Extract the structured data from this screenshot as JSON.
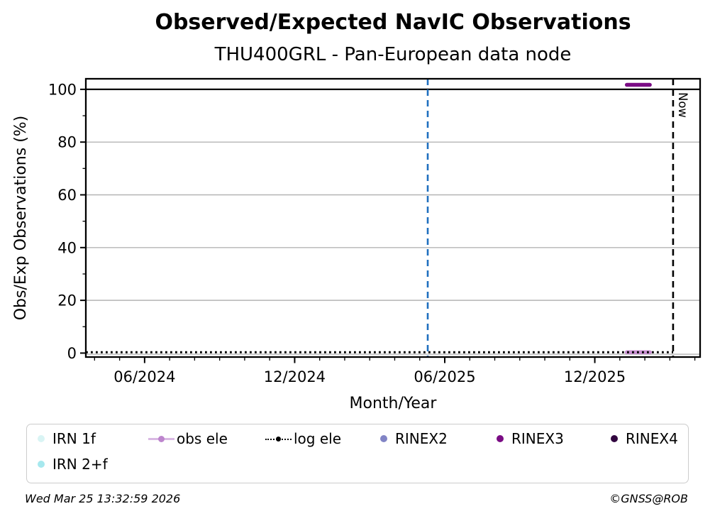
{
  "header": {
    "title": "Observed/Expected NavIC Observations",
    "subtitle": "THU400GRL - Pan-European data node"
  },
  "footer": {
    "timestamp": "Wed Mar 25 13:32:59 2026",
    "copyright": "©GNSS@ROB"
  },
  "chart_data": {
    "type": "line",
    "title": "Observed/Expected NavIC Observations",
    "subtitle": "THU400GRL - Pan-European data node",
    "xlabel": "Month/Year",
    "ylabel": "Obs/Exp Observations (%)",
    "x_unit": "months_since_2024-01-01",
    "xlim": [
      2.65,
      27.21
    ],
    "ylim": [
      -1.5,
      104
    ],
    "x_major_ticks": [
      {
        "m": 5,
        "label": "06/2024"
      },
      {
        "m": 11,
        "label": "12/2024"
      },
      {
        "m": 17,
        "label": "06/2025"
      },
      {
        "m": 23,
        "label": "12/2025"
      }
    ],
    "x_minor_step": 1,
    "y_major_ticks": [
      0,
      20,
      40,
      60,
      80,
      100
    ],
    "y_minor_ticks": [
      10,
      30,
      50,
      70,
      90
    ],
    "grid": {
      "y_values": [
        0,
        20,
        40,
        60,
        80
      ],
      "color": "#b4b4b4"
    },
    "reference_lines": [
      {
        "name": "hundred-percent-line",
        "orientation": "horizontal",
        "y": 100,
        "color": "#000000",
        "style": "solid",
        "width": 2.2,
        "label": ""
      },
      {
        "name": "event-line",
        "orientation": "vertical",
        "x": 16.32,
        "color": "#1f6fbf",
        "style": "dashed",
        "width": 2.6,
        "label": ""
      },
      {
        "name": "now-line",
        "orientation": "vertical",
        "x": 26.13,
        "color": "#000000",
        "style": "dashed",
        "width": 2.6,
        "label": "Now"
      }
    ],
    "series": [
      {
        "name": "IRN 1f",
        "color": "#d9f4f4",
        "style": "solid",
        "width": 5.5,
        "points": []
      },
      {
        "name": "IRN 2+f",
        "color": "#a6e8ee",
        "style": "solid",
        "width": 5.5,
        "points": []
      },
      {
        "name": "obs ele",
        "color": "#c98fd2",
        "style": "solid",
        "width": 5.5,
        "points": [
          [
            24.28,
            0
          ],
          [
            25.2,
            0
          ]
        ]
      },
      {
        "name": "RINEX2",
        "color": "#8184c5",
        "style": "solid",
        "width": 5.5,
        "points": []
      },
      {
        "name": "RINEX3",
        "color": "#7a0c84",
        "style": "solid",
        "width": 5.5,
        "points": [
          [
            24.28,
            101.7
          ],
          [
            25.2,
            101.7
          ]
        ]
      },
      {
        "name": "RINEX4",
        "color": "#320640",
        "style": "solid",
        "width": 5.5,
        "points": []
      },
      {
        "name": "log ele",
        "color": "#000000",
        "style": "dotted",
        "width": 3.0,
        "points": [
          [
            2.65,
            0
          ],
          [
            26.13,
            0
          ]
        ]
      }
    ],
    "legend": [
      {
        "label": "IRN 1f",
        "swatch": "dot",
        "color": "#d9f4f4"
      },
      {
        "label": "obs ele",
        "swatch": "line-dot",
        "line_color": "#d9b8e3",
        "marker_color": "#bd85cd"
      },
      {
        "label": "log ele",
        "swatch": "dotted-dot",
        "color": "#000000"
      },
      {
        "label": "RINEX2",
        "swatch": "dot",
        "color": "#8184c5"
      },
      {
        "label": "RINEX3",
        "swatch": "dot",
        "color": "#7a0c84"
      },
      {
        "label": "RINEX4",
        "swatch": "dot",
        "color": "#320640"
      },
      {
        "label": "IRN 2+f",
        "swatch": "dot",
        "color": "#a6e8ee"
      }
    ],
    "legend_position": "bottom"
  }
}
